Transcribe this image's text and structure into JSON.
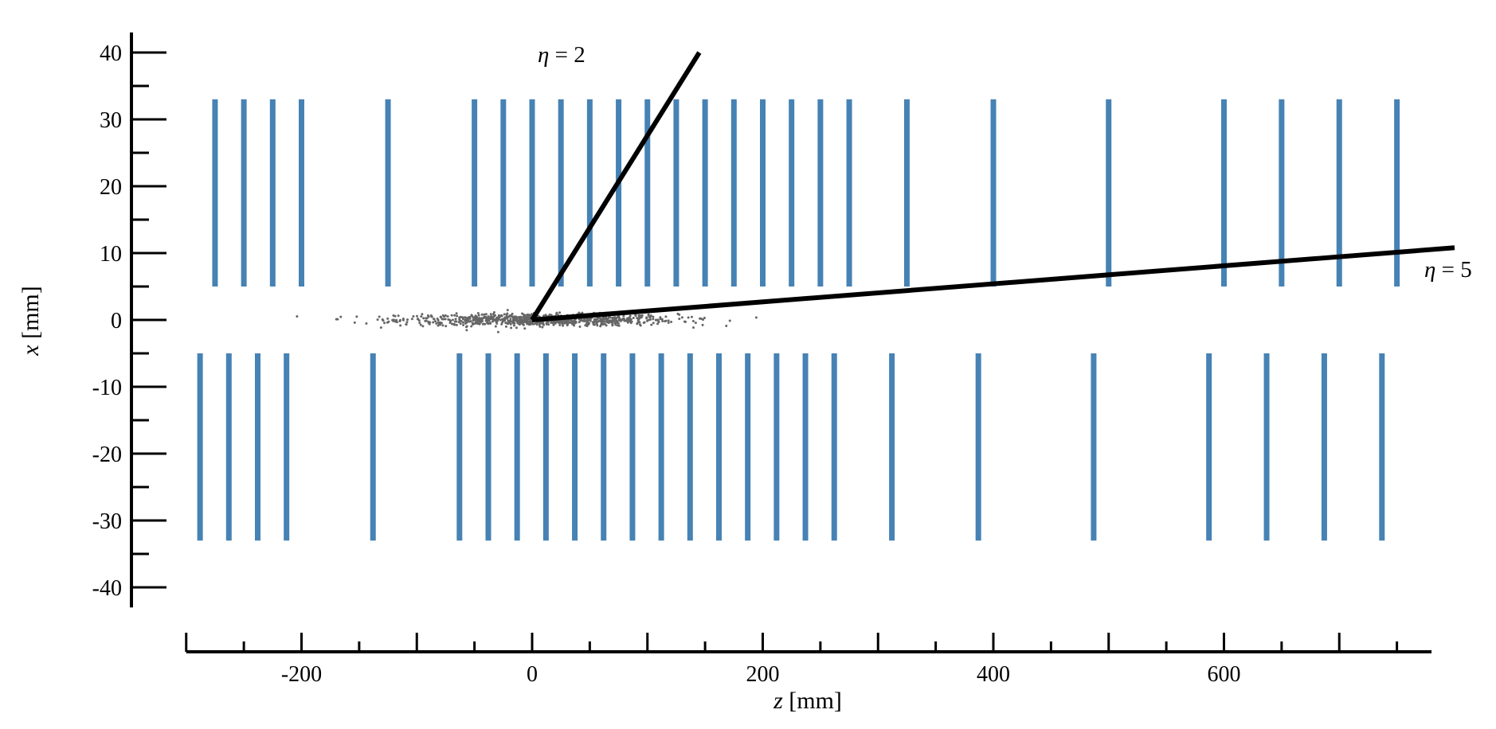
{
  "chart_data": {
    "type": "scatter",
    "title": "",
    "xlabel": {
      "var": "z",
      "unit": "[mm]"
    },
    "ylabel": {
      "var": "x",
      "unit": "[mm]"
    },
    "xlim": [
      -300,
      780
    ],
    "ylim": [
      -43,
      43
    ],
    "x_ticks": [
      -200,
      0,
      200,
      400,
      600
    ],
    "x_tick_labels": [
      "-200",
      "0",
      "200",
      "400",
      "600"
    ],
    "x_minor_step": 50,
    "y_ticks": [
      40,
      30,
      20,
      10,
      0,
      -10,
      -20,
      -30,
      -40
    ],
    "y_tick_labels": [
      "40",
      "30",
      "20",
      "10",
      "0",
      "-10",
      "-20",
      "-30",
      "-40"
    ],
    "y_minor_step": 5,
    "modules_top": {
      "x_range": [
        5,
        33
      ],
      "z_positions": [
        -275,
        -250,
        -225,
        -200,
        -125,
        -50,
        -25,
        0,
        25,
        50,
        75,
        100,
        125,
        150,
        175,
        200,
        225,
        250,
        275,
        325,
        400,
        500,
        600,
        650,
        700,
        750
      ]
    },
    "modules_bottom": {
      "x_range": [
        -33,
        -5
      ],
      "z_positions": [
        -288,
        -263,
        -238,
        -213,
        -138,
        -63,
        -38,
        -13,
        12,
        37,
        62,
        87,
        112,
        137,
        162,
        187,
        212,
        237,
        262,
        312,
        387,
        487,
        587,
        637,
        687,
        737
      ]
    },
    "tracks": [
      {
        "label": "η = 2",
        "eta": 2,
        "start": [
          0,
          0
        ],
        "end": [
          145,
          40
        ]
      },
      {
        "label": "η = 5",
        "eta": 5,
        "start": [
          0,
          0
        ],
        "end": [
          800,
          10.8
        ]
      }
    ],
    "vertex_region": {
      "z_range": [
        -240,
        250
      ],
      "x_sigma": 0.45,
      "x_center": 0
    },
    "colors": {
      "module": "#4682b4",
      "track": "#000000",
      "vertex": "#666666"
    }
  }
}
